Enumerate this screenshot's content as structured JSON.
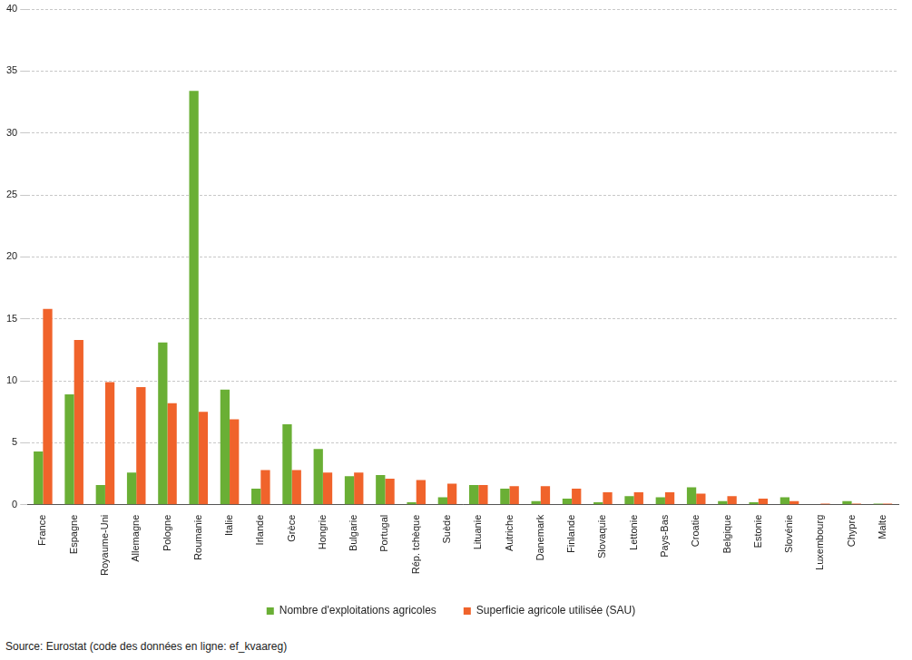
{
  "chart_data": {
    "type": "bar",
    "categories": [
      "France",
      "Espagne",
      "Royaume-Uni",
      "Allemagne",
      "Pologne",
      "Roumanie",
      "Italie",
      "Irlande",
      "Grèce",
      "Hongrie",
      "Bulgarie",
      "Portugal",
      "Rép. tchèque",
      "Suède",
      "Lituanie",
      "Autriche",
      "Danemark",
      "Finlande",
      "Slovaquie",
      "Lettonie",
      "Pays-Bas",
      "Croatie",
      "Belgique",
      "Estonie",
      "Slovénie",
      "Luxembourg",
      "Chypre",
      "Malte"
    ],
    "series": [
      {
        "name": "Nombre d'exploitations agricoles",
        "color": "#6aaf35",
        "values": [
          4.3,
          8.9,
          1.6,
          2.6,
          13.1,
          33.4,
          9.3,
          1.3,
          6.5,
          4.5,
          2.3,
          2.4,
          0.2,
          0.6,
          1.6,
          1.3,
          0.3,
          0.5,
          0.2,
          0.7,
          0.6,
          1.4,
          0.3,
          0.2,
          0.6,
          0.0,
          0.3,
          0.1
        ]
      },
      {
        "name": "Superficie agricole utilisée (SAU)",
        "color": "#f0632b",
        "values": [
          15.8,
          13.3,
          9.9,
          9.5,
          8.2,
          7.5,
          6.9,
          2.8,
          2.8,
          2.6,
          2.6,
          2.1,
          2.0,
          1.7,
          1.6,
          1.5,
          1.5,
          1.3,
          1.0,
          1.0,
          1.0,
          0.9,
          0.7,
          0.5,
          0.3,
          0.1,
          0.1,
          0.1
        ]
      }
    ],
    "ylim": [
      0,
      40
    ],
    "yticks": [
      0,
      5,
      10,
      15,
      20,
      25,
      30,
      35,
      40
    ],
    "grid": true,
    "legend": "bottom",
    "source": "Source: Eurostat (code des données en ligne: ef_kvaareg)"
  }
}
